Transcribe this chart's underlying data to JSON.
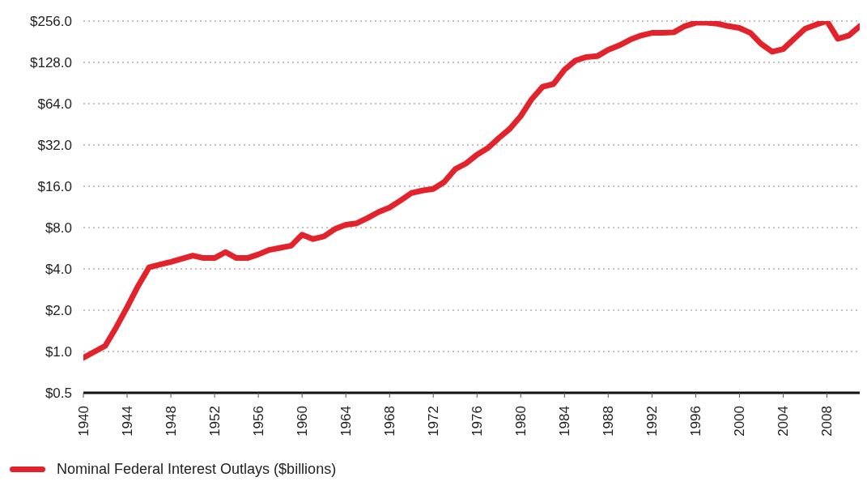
{
  "chart_data": {
    "type": "line",
    "x": [
      1940,
      1942,
      1943,
      1944,
      1945,
      1946,
      1947,
      1948,
      1950,
      1951,
      1952,
      1953,
      1954,
      1955,
      1956,
      1957,
      1958,
      1959,
      1960,
      1961,
      1962,
      1963,
      1964,
      1965,
      1966,
      1967,
      1968,
      1969,
      1970,
      1971,
      1972,
      1973,
      1974,
      1975,
      1976,
      1977,
      1978,
      1979,
      1980,
      1981,
      1982,
      1983,
      1984,
      1985,
      1986,
      1987,
      1988,
      1989,
      1990,
      1991,
      1992,
      1993,
      1994,
      1995,
      1996,
      1997,
      1998,
      1999,
      2000,
      2001,
      2002,
      2003,
      2004,
      2005,
      2006,
      2007,
      2008,
      2009,
      2010,
      2011
    ],
    "series": [
      {
        "name": "Nominal Federal Interest Outlays ($billions)",
        "color": "#e3232b",
        "values": [
          0.9,
          1.1,
          1.5,
          2.1,
          3.0,
          4.1,
          4.3,
          4.5,
          5.0,
          4.8,
          4.8,
          5.3,
          4.8,
          4.8,
          5.1,
          5.5,
          5.7,
          5.9,
          7.1,
          6.6,
          6.9,
          7.8,
          8.4,
          8.6,
          9.4,
          10.4,
          11.2,
          12.6,
          14.3,
          14.9,
          15.3,
          17.2,
          21.3,
          23.5,
          27.2,
          30.4,
          36,
          42,
          52,
          69,
          85,
          89,
          113,
          132,
          140,
          142,
          158,
          170,
          187,
          201,
          210,
          210,
          212,
          235,
          249,
          249,
          245,
          235,
          228,
          210,
          174,
          153,
          160,
          190,
          225,
          241,
          256,
          190,
          201,
          235
        ]
      }
    ],
    "xlim": [
      1940,
      2011
    ],
    "xticks": [
      1940,
      1944,
      1948,
      1952,
      1956,
      1960,
      1964,
      1968,
      1972,
      1976,
      1980,
      1984,
      1988,
      1992,
      1996,
      2000,
      2004,
      2008
    ],
    "log": "y",
    "ylim": [
      0.5,
      256
    ],
    "yticks": [
      {
        "value": 0.5,
        "label": "$0.5"
      },
      {
        "value": 1,
        "label": "$1.0"
      },
      {
        "value": 2,
        "label": "$2.0"
      },
      {
        "value": 4,
        "label": "$4.0"
      },
      {
        "value": 8,
        "label": "$8.0"
      },
      {
        "value": 16,
        "label": "$16.0"
      },
      {
        "value": 32,
        "label": "$32.0"
      },
      {
        "value": 64,
        "label": "$64.0"
      },
      {
        "value": 128,
        "label": "$128.0"
      },
      {
        "value": 256,
        "label": "$256.0"
      }
    ],
    "grid": "y",
    "line_style": "solid",
    "legend": "bottom left"
  }
}
